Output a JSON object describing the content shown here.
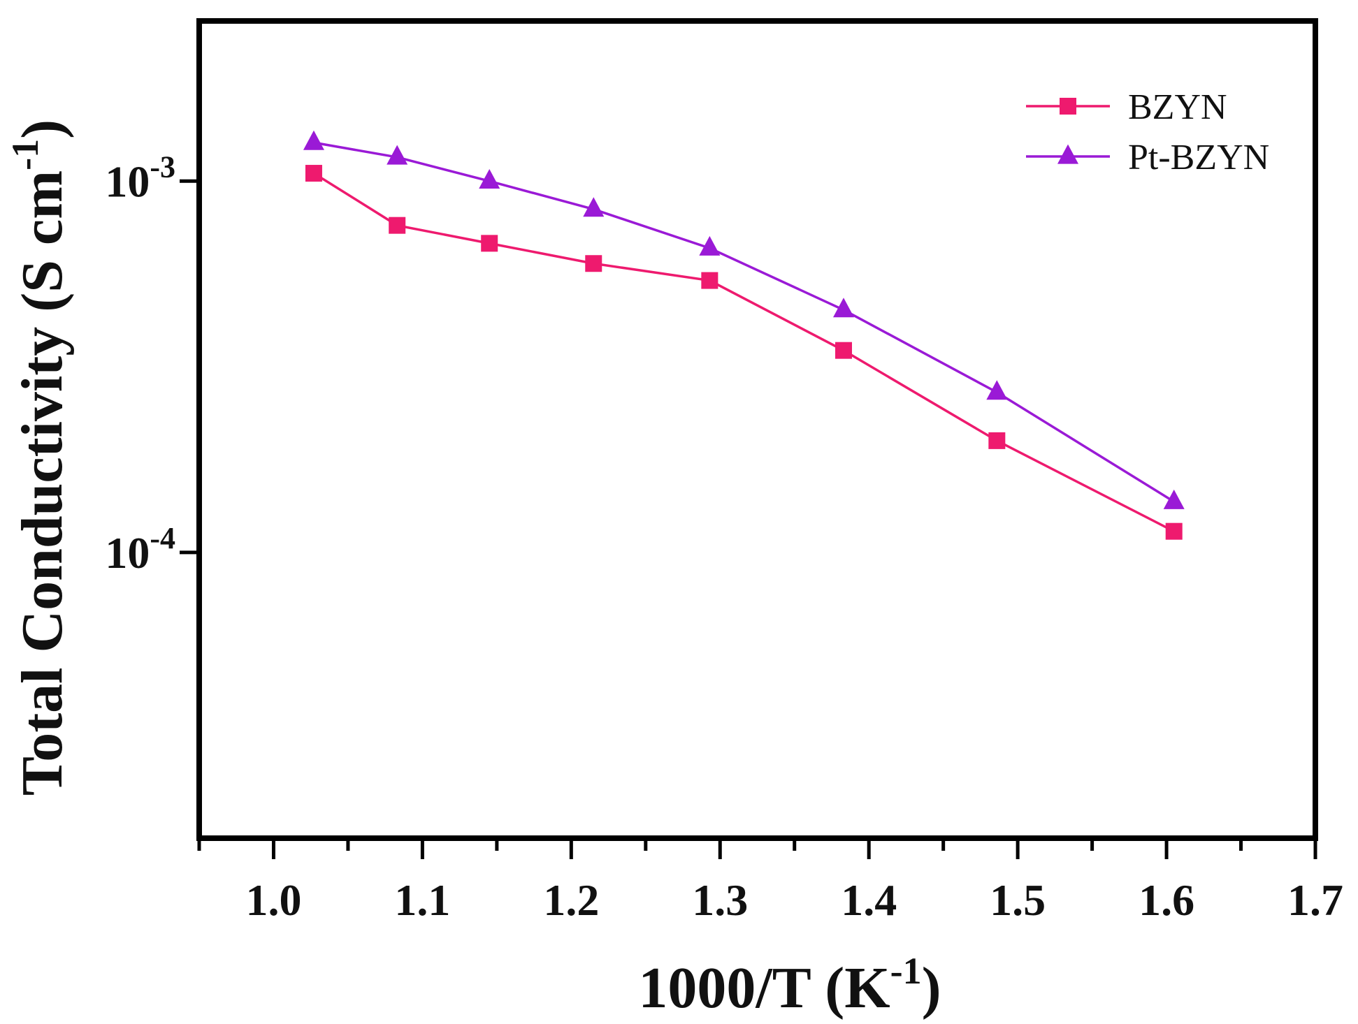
{
  "chart_data": {
    "type": "line",
    "title": "",
    "xlabel": "1000/T (K-1)",
    "xlabel_base": "1000/T (K",
    "xlabel_sup": "-1",
    "xlabel_close": ")",
    "ylabel": "Total Conductivity (S cm-1)",
    "ylabel_base": "Total Conductivity (S cm",
    "ylabel_sup": "-1",
    "ylabel_close": ")",
    "yscale": "log",
    "xlim": [
      0.95,
      1.7
    ],
    "ylim": [
      1.7e-05,
      0.0027
    ],
    "x_ticks": [
      1.0,
      1.1,
      1.2,
      1.3,
      1.4,
      1.5,
      1.6,
      1.7
    ],
    "x_tick_labels": [
      "1.0",
      "1.1",
      "1.2",
      "1.3",
      "1.4",
      "1.5",
      "1.6",
      "1.7"
    ],
    "y_ticks": [
      {
        "value": 0.001,
        "base": "10",
        "exponent": "-3"
      },
      {
        "value": 0.0001,
        "base": "10",
        "exponent": "-4"
      }
    ],
    "grid": false,
    "legend_position": "top-right",
    "series": [
      {
        "name": "BZYN",
        "color": "#ee1a6e",
        "marker": "square",
        "x": [
          1.027,
          1.083,
          1.145,
          1.215,
          1.293,
          1.383,
          1.486,
          1.605
        ],
        "y": [
          0.00105,
          0.00076,
          0.00068,
          0.0006,
          0.00054,
          0.00035,
          0.0002,
          0.000114
        ]
      },
      {
        "name": "Pt-BZYN",
        "color": "#9a1ad6",
        "marker": "triangle",
        "x": [
          1.027,
          1.083,
          1.145,
          1.215,
          1.293,
          1.383,
          1.486,
          1.605
        ],
        "y": [
          0.00127,
          0.00116,
          0.001,
          0.00084,
          0.00066,
          0.00045,
          0.00027,
          0.000137
        ]
      }
    ]
  }
}
